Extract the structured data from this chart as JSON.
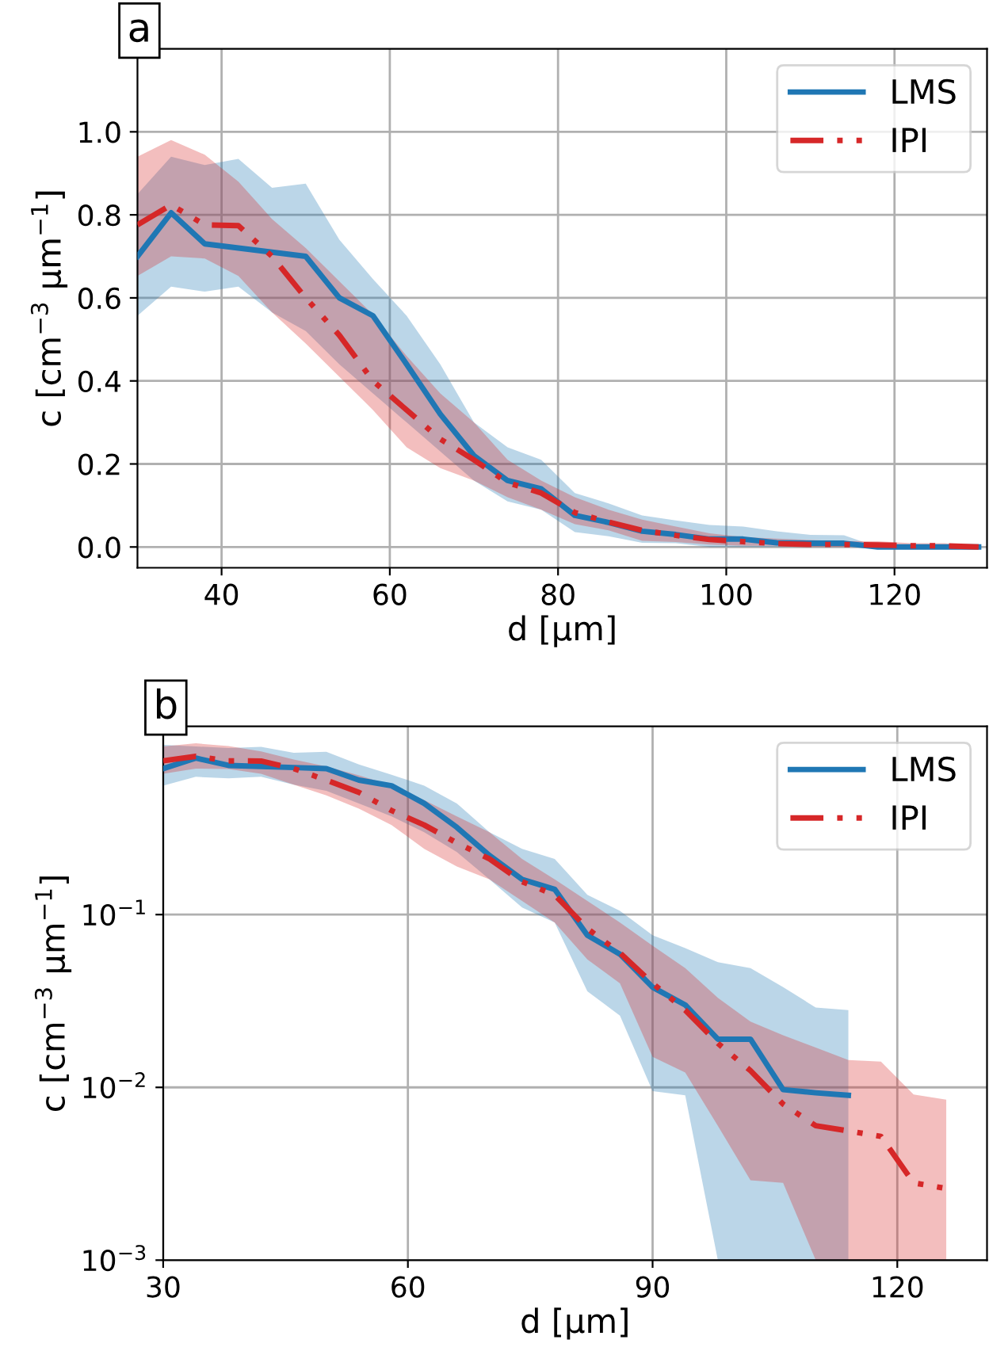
{
  "chart_data": [
    {
      "type": "line",
      "xlabel": "d [μm]",
      "ylabel": "c [cm$^{−3}$ μm$^{−1}$]",
      "annotations": [
        "a"
      ],
      "x": [
        30,
        34,
        38,
        42,
        46,
        50,
        54,
        58,
        62,
        66,
        70,
        74,
        78,
        82,
        86,
        90,
        94,
        98,
        102,
        106,
        110,
        114,
        118,
        122,
        126,
        130
      ],
      "series": [
        {
          "name": "LMS",
          "color": "#1f77b4",
          "line_style": "solid",
          "values": [
            0.7,
            0.805,
            0.73,
            0.72,
            0.71,
            0.7,
            0.6,
            0.557,
            0.44,
            0.32,
            0.22,
            0.16,
            0.14,
            0.076,
            0.059,
            0.038,
            0.03,
            0.019,
            0.019,
            0.01,
            0.009,
            0.009,
            0,
            0,
            0,
            0
          ],
          "lower": [
            0.557,
            0.627,
            0.615,
            0.627,
            0.565,
            0.52,
            0.44,
            0.37,
            0.3,
            0.23,
            0.16,
            0.11,
            0.09,
            0.036,
            0.026,
            0.01,
            0.009,
            0,
            0,
            0,
            0,
            0,
            0,
            0,
            0,
            0
          ],
          "upper": [
            0.85,
            0.94,
            0.92,
            0.935,
            0.865,
            0.875,
            0.74,
            0.645,
            0.557,
            0.44,
            0.3,
            0.24,
            0.21,
            0.13,
            0.105,
            0.076,
            0.064,
            0.053,
            0.049,
            0.038,
            0.029,
            0.028,
            0,
            0,
            0,
            0
          ]
        },
        {
          "name": "IPI",
          "color": "#d62728",
          "line_style": "dashed",
          "values": [
            0.776,
            0.824,
            0.776,
            0.774,
            0.7,
            0.6,
            0.51,
            0.4,
            0.33,
            0.26,
            0.21,
            0.155,
            0.13,
            0.083,
            0.06,
            0.04,
            0.028,
            0.018,
            0.013,
            0.008,
            0.006,
            0.006,
            0.005,
            0.003,
            0.003,
            0
          ],
          "lower": [
            0.653,
            0.7,
            0.695,
            0.653,
            0.565,
            0.49,
            0.41,
            0.33,
            0.24,
            0.19,
            0.16,
            0.12,
            0.09,
            0.055,
            0.04,
            0.015,
            0.012,
            0.006,
            0.003,
            0.003,
            0,
            0,
            0,
            0,
            0,
            0
          ],
          "upper": [
            0.94,
            0.98,
            0.945,
            0.88,
            0.79,
            0.72,
            0.64,
            0.56,
            0.46,
            0.37,
            0.3,
            0.21,
            0.16,
            0.12,
            0.09,
            0.066,
            0.049,
            0.033,
            0.024,
            0.02,
            0.017,
            0.014,
            0.014,
            0.009,
            0.009,
            0
          ]
        }
      ],
      "xlim": [
        30,
        131
      ],
      "xticks": [
        40,
        60,
        80,
        100,
        120
      ],
      "ylim": [
        -0.05,
        1.2
      ],
      "yticks": [
        {
          "value": 0,
          "label": "0.0"
        },
        0.2,
        0.4,
        0.6,
        0.8,
        {
          "value": 1,
          "label": "1.0"
        }
      ],
      "grid": true,
      "legend": "top right"
    },
    {
      "type": "line",
      "xlabel": "d [μm]",
      "ylabel": "c [cm$^{−3}$ μm$^{−1}$]",
      "annotations": [
        "b"
      ],
      "log": "y",
      "series": [
        {
          "name": "LMS",
          "color": "#1f77b4",
          "line_style": "solid",
          "x": [
            30,
            34,
            38,
            42,
            46,
            50,
            54,
            58,
            62,
            66,
            70,
            74,
            78,
            82,
            86,
            90,
            94,
            98,
            102,
            106,
            110,
            114
          ],
          "values": [
            0.7,
            0.805,
            0.73,
            0.72,
            0.71,
            0.7,
            0.6,
            0.557,
            0.44,
            0.32,
            0.22,
            0.16,
            0.14,
            0.076,
            0.059,
            0.038,
            0.03,
            0.019,
            0.019,
            0.0097,
            0.0093,
            0.009
          ],
          "lower": [
            0.557,
            0.627,
            0.615,
            0.627,
            0.565,
            0.52,
            0.44,
            0.37,
            0.3,
            0.23,
            0.16,
            0.11,
            0.09,
            0.036,
            0.026,
            0.0095,
            0.009,
            0.001,
            0.001,
            0.001,
            0.001,
            0.001
          ],
          "upper": [
            0.96,
            0.94,
            0.92,
            0.935,
            0.865,
            0.875,
            0.74,
            0.645,
            0.557,
            0.44,
            0.3,
            0.24,
            0.21,
            0.13,
            0.105,
            0.076,
            0.064,
            0.053,
            0.049,
            0.038,
            0.029,
            0.028
          ]
        },
        {
          "name": "IPI",
          "color": "#d62728",
          "line_style": "dashed",
          "x": [
            30,
            34,
            38,
            42,
            46,
            50,
            54,
            58,
            62,
            66,
            70,
            74,
            78,
            82,
            86,
            90,
            94,
            98,
            102,
            106,
            110,
            114,
            118,
            122,
            126
          ],
          "values": [
            0.776,
            0.824,
            0.776,
            0.774,
            0.7,
            0.6,
            0.51,
            0.4,
            0.33,
            0.26,
            0.21,
            0.155,
            0.13,
            0.083,
            0.06,
            0.04,
            0.028,
            0.018,
            0.0125,
            0.008,
            0.006,
            0.0056,
            0.0052,
            0.0028,
            0.0026
          ],
          "lower": [
            0.653,
            0.7,
            0.695,
            0.653,
            0.565,
            0.49,
            0.41,
            0.33,
            0.24,
            0.19,
            0.16,
            0.12,
            0.09,
            0.055,
            0.04,
            0.015,
            0.0122,
            0.006,
            0.0029,
            0.0028,
            0.001,
            0.001,
            0.001,
            0.001,
            0.001
          ],
          "upper": [
            0.94,
            0.98,
            0.945,
            0.88,
            0.79,
            0.72,
            0.64,
            0.56,
            0.46,
            0.37,
            0.3,
            0.21,
            0.16,
            0.12,
            0.09,
            0.066,
            0.049,
            0.033,
            0.024,
            0.02,
            0.017,
            0.0144,
            0.0141,
            0.0091,
            0.0085
          ]
        }
      ],
      "xlim": [
        30,
        131
      ],
      "xticks": [
        30,
        60,
        90,
        120
      ],
      "ylim": [
        0.001,
        1.23
      ],
      "yticks": [
        {
          "value": 0.001,
          "label": "10$^{−3}$"
        },
        {
          "value": 0.01,
          "label": "10$^{−2}$"
        },
        {
          "value": 0.1,
          "label": "10$^{−1}$"
        }
      ],
      "grid": true,
      "legend": "top right"
    }
  ]
}
